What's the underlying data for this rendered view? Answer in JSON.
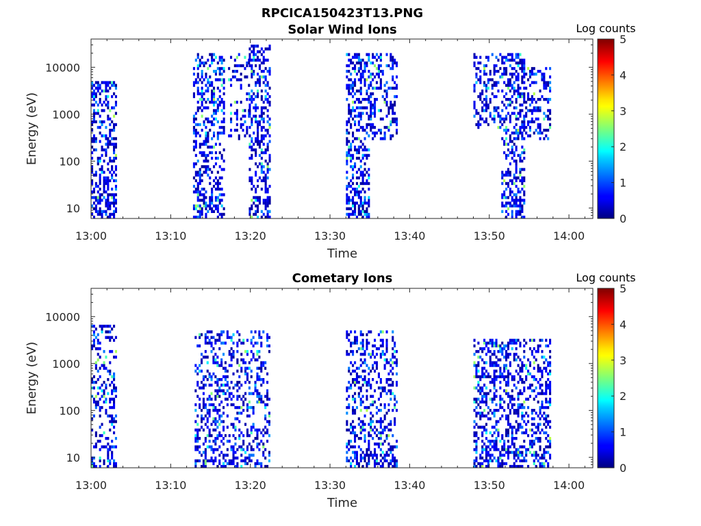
{
  "figure": {
    "suptitle": "RPCICA150423T13.PNG"
  },
  "chart_data": [
    {
      "type": "heatmap",
      "title": "Solar Wind Ions",
      "xlabel": "Time",
      "ylabel": "Energy (eV)",
      "colorbar_label": "Log counts",
      "x_tick_labels": [
        "13:00",
        "13:10",
        "13:20",
        "13:30",
        "13:40",
        "13:50",
        "14:00"
      ],
      "x_range_minutes": [
        0,
        63
      ],
      "y_scale": "log",
      "y_range_ev": [
        6,
        40000
      ],
      "y_tick_values": [
        10,
        100,
        1000,
        10000
      ],
      "y_tick_labels": [
        "10",
        "100",
        "1000",
        "10000"
      ],
      "colorbar_range": [
        0,
        5
      ],
      "colorbar_tick_labels": [
        "0",
        "1",
        "2",
        "3",
        "4",
        "5"
      ],
      "colormap": "jet",
      "activity_bursts": [
        {
          "t0": 0.0,
          "t1": 3.2,
          "emin": 6,
          "emax": 5000,
          "density": 0.42
        },
        {
          "t0": 12.8,
          "t1": 16.8,
          "emin": 6,
          "emax": 20000,
          "density": 0.38
        },
        {
          "t0": 17.2,
          "t1": 19.8,
          "emin": 300,
          "emax": 20000,
          "density": 0.22
        },
        {
          "t0": 19.8,
          "t1": 22.5,
          "emin": 6,
          "emax": 30000,
          "density": 0.38
        },
        {
          "t0": 32.0,
          "t1": 35.0,
          "emin": 6,
          "emax": 20000,
          "density": 0.42
        },
        {
          "t0": 35.0,
          "t1": 38.5,
          "emin": 300,
          "emax": 20000,
          "density": 0.3
        },
        {
          "t0": 48.0,
          "t1": 51.5,
          "emin": 500,
          "emax": 20000,
          "density": 0.3
        },
        {
          "t0": 51.5,
          "t1": 54.5,
          "emin": 6,
          "emax": 20000,
          "density": 0.42
        },
        {
          "t0": 54.5,
          "t1": 57.7,
          "emin": 300,
          "emax": 10000,
          "density": 0.32
        }
      ]
    },
    {
      "type": "heatmap",
      "title": "Cometary Ions",
      "xlabel": "Time",
      "ylabel": "Energy (eV)",
      "colorbar_label": "Log counts",
      "x_tick_labels": [
        "13:00",
        "13:10",
        "13:20",
        "13:30",
        "13:40",
        "13:50",
        "14:00"
      ],
      "x_range_minutes": [
        0,
        63
      ],
      "y_scale": "log",
      "y_range_ev": [
        6,
        40000
      ],
      "y_tick_values": [
        10,
        100,
        1000,
        10000
      ],
      "y_tick_labels": [
        "10",
        "100",
        "1000",
        "10000"
      ],
      "colorbar_range": [
        0,
        5
      ],
      "colorbar_tick_labels": [
        "0",
        "1",
        "2",
        "3",
        "4",
        "5"
      ],
      "colormap": "jet",
      "activity_bursts": [
        {
          "t0": 0.0,
          "t1": 3.2,
          "emin": 6,
          "emax": 6000,
          "density": 0.3
        },
        {
          "t0": 13.0,
          "t1": 22.5,
          "emin": 6,
          "emax": 5000,
          "density": 0.3
        },
        {
          "t0": 32.0,
          "t1": 38.5,
          "emin": 6,
          "emax": 5000,
          "density": 0.32
        },
        {
          "t0": 48.0,
          "t1": 57.7,
          "emin": 6,
          "emax": 3000,
          "density": 0.36
        }
      ]
    }
  ]
}
